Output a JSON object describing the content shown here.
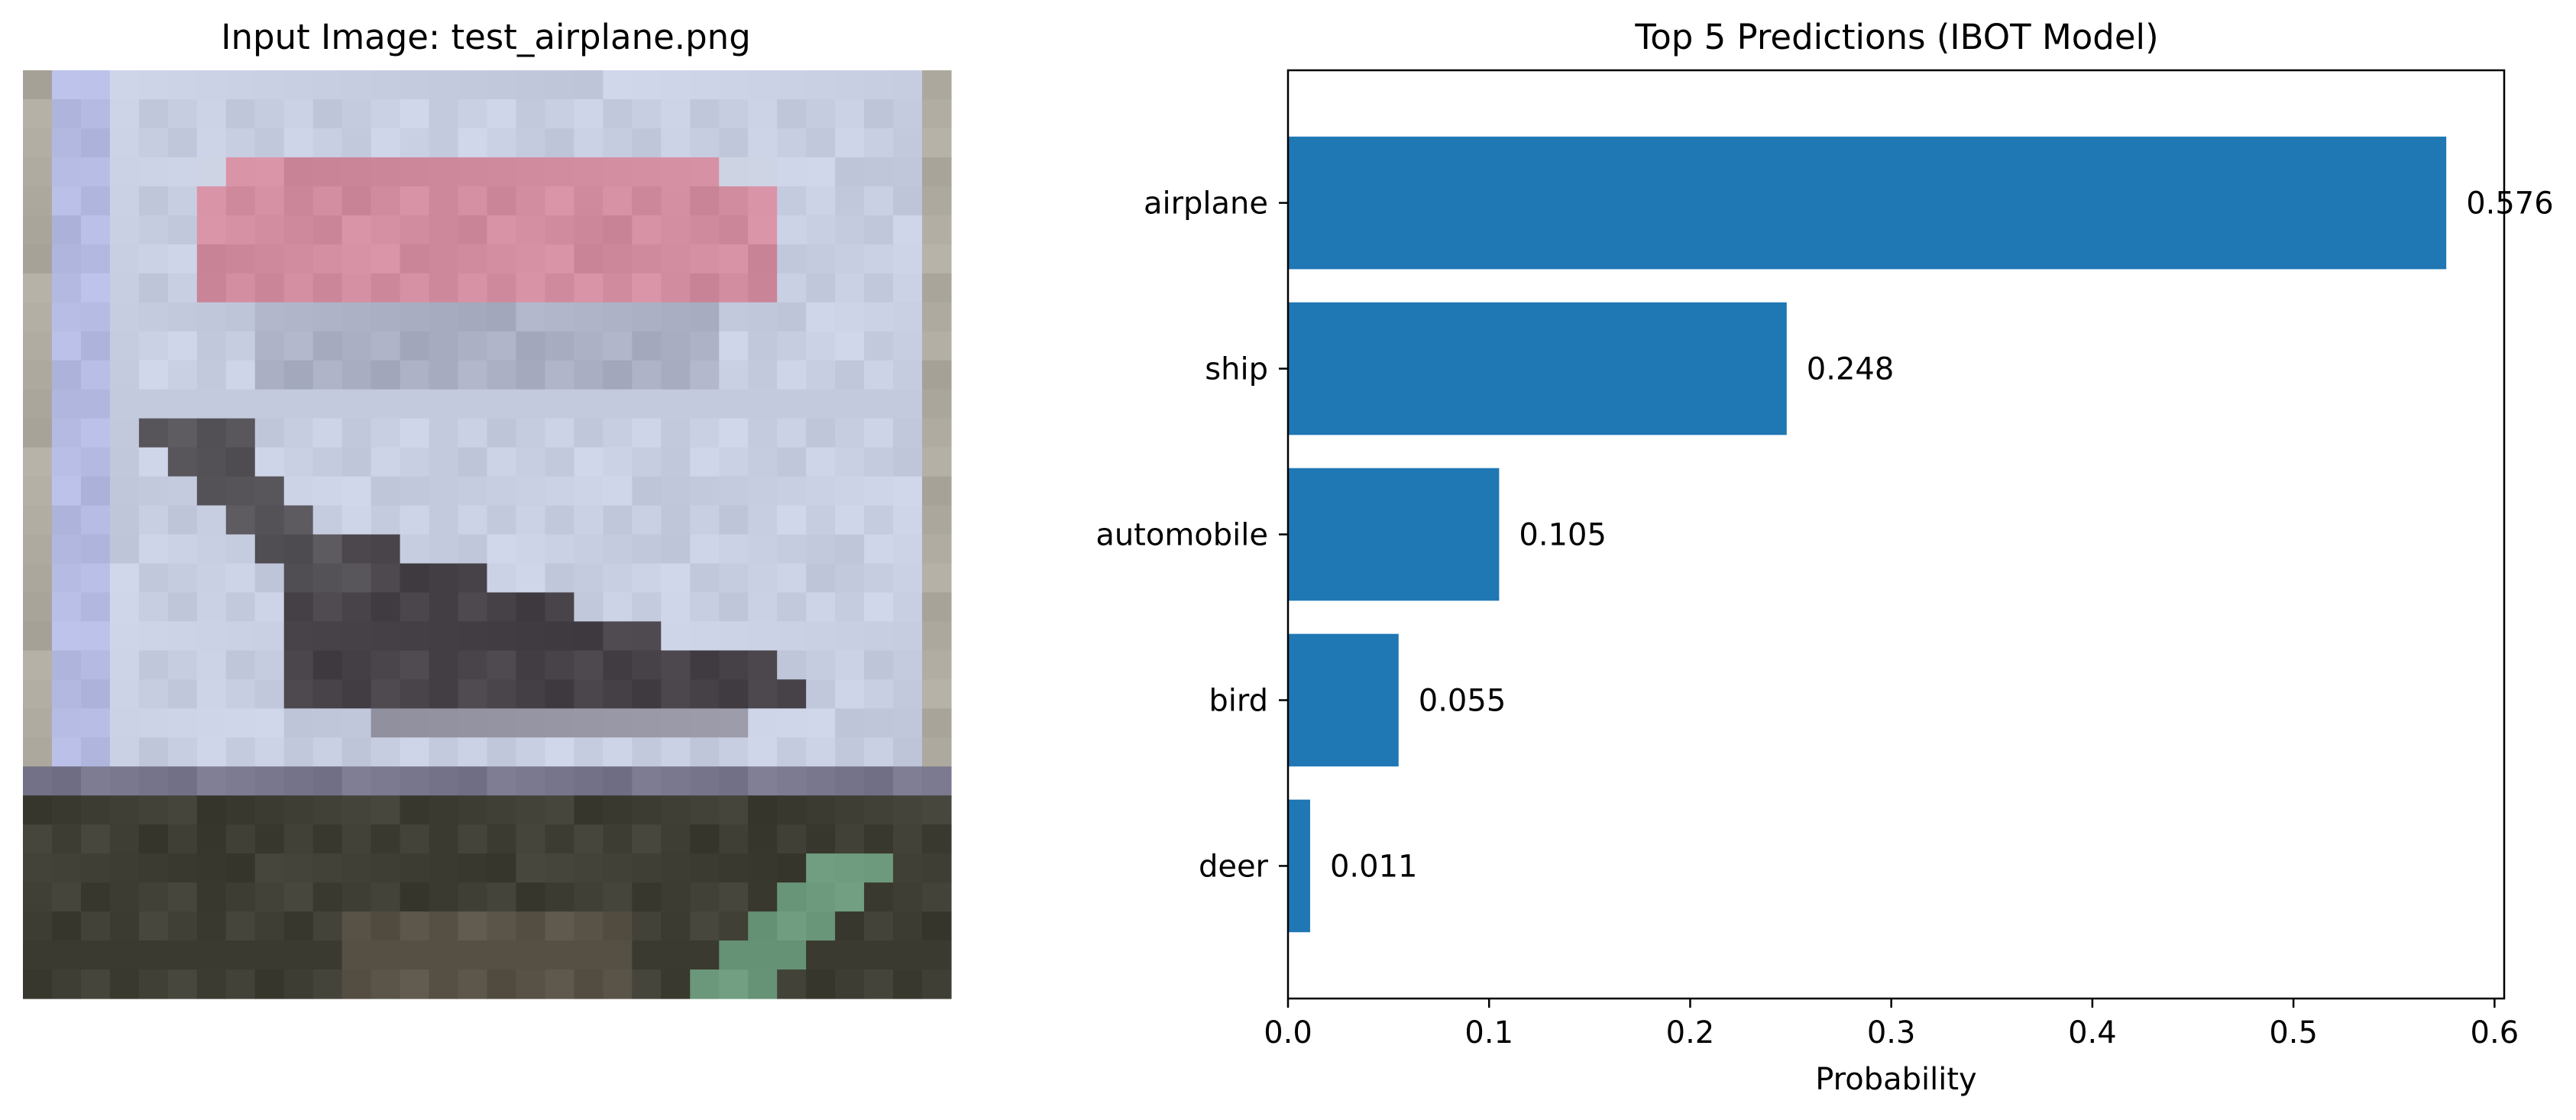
{
  "left_panel": {
    "title": "Input Image: test_airplane.png",
    "image_description": "pixelated 32x32 photo: airplane in flight over a pale sky with a red and white banner/wing above, dark ground strip at the bottom",
    "pixel_grid_colors": {
      "sky": "#c9cde0",
      "red_stripe": "#d98296",
      "plane": "#4a4548",
      "ground": "#3e3e36",
      "grass": "#5e8a6c"
    }
  },
  "chart_data": {
    "type": "bar",
    "orientation": "horizontal",
    "title": "Top 5 Predictions (IBOT Model)",
    "xlabel": "Probability",
    "ylabel": "",
    "categories": [
      "airplane",
      "ship",
      "automobile",
      "bird",
      "deer"
    ],
    "values": [
      0.576,
      0.248,
      0.105,
      0.055,
      0.011
    ],
    "value_labels": [
      "0.576",
      "0.248",
      "0.105",
      "0.055",
      "0.011"
    ],
    "xlim": [
      0,
      0.6048
    ],
    "xticks": [
      0.0,
      0.1,
      0.2,
      0.3,
      0.4,
      0.5,
      0.6
    ],
    "xtick_labels": [
      "0.0",
      "0.1",
      "0.2",
      "0.3",
      "0.4",
      "0.5",
      "0.6"
    ],
    "bar_color": "#1f77b4",
    "grid": false,
    "legend": "none"
  }
}
